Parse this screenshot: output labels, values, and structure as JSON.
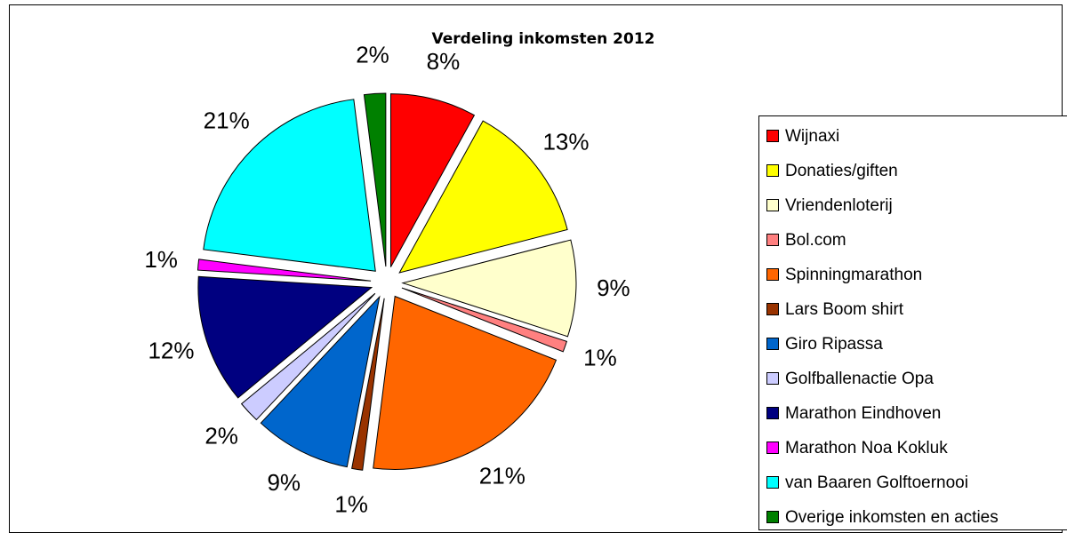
{
  "chart_data": {
    "type": "pie",
    "title": "Verdeling inkomsten 2012",
    "categories": [
      "Wijnaxi",
      "Donaties/giften",
      "Vriendenloterij",
      "Bol.com",
      "Spinningmarathon",
      "Lars Boom shirt",
      "Giro Ripassa",
      "Golfballenactie Opa",
      "Marathon Eindhoven",
      "Marathon Noa Kokluk",
      "van Baaren Golftoernooi",
      "Overige inkomsten en acties"
    ],
    "values": [
      8,
      13,
      9,
      1,
      21,
      1,
      9,
      2,
      12,
      1,
      21,
      2
    ],
    "value_labels": [
      "8%",
      "13%",
      "9%",
      "1%",
      "21%",
      "1%",
      "9%",
      "2%",
      "12%",
      "1%",
      "21%",
      "2%"
    ],
    "colors": [
      "#ff0000",
      "#ffff00",
      "#ffffcc",
      "#ff8080",
      "#ff6600",
      "#993300",
      "#0066cc",
      "#ccccff",
      "#000080",
      "#ff00ff",
      "#00ffff",
      "#008000"
    ],
    "legend": "right"
  }
}
